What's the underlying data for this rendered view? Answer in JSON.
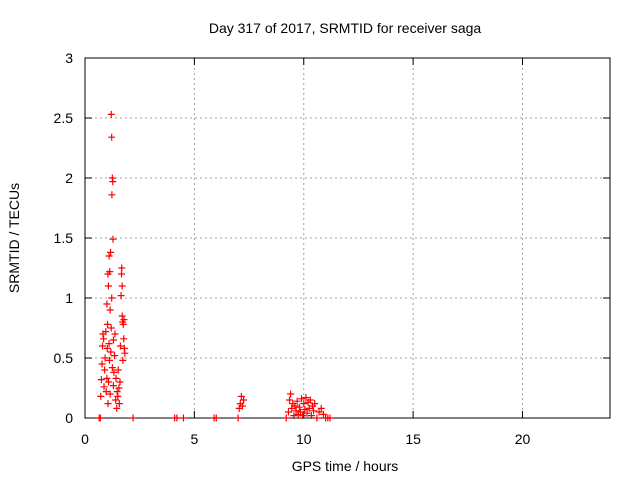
{
  "chart_data": {
    "type": "scatter",
    "title": "Day 317 of 2017, SRMTID for receiver saga",
    "xlabel": "GPS time / hours",
    "ylabel": "SRMTID / TECUs",
    "xlim": [
      0,
      24
    ],
    "ylim": [
      0,
      3
    ],
    "x_ticks": [
      0,
      5,
      10,
      15,
      20
    ],
    "y_ticks": [
      0,
      0.5,
      1,
      1.5,
      2,
      2.5,
      3
    ],
    "x_tick_labels": [
      "0",
      "5",
      "10",
      "15",
      "20"
    ],
    "y_tick_labels": [
      "0",
      "0.5",
      "1",
      "1.5",
      "2",
      "2.5",
      "3"
    ],
    "grid": true,
    "marker": "plus",
    "color": "#ff0000",
    "points": [
      [
        0.65,
        0.0
      ],
      [
        0.7,
        0.0
      ],
      [
        0.72,
        0.18
      ],
      [
        0.75,
        0.32
      ],
      [
        0.78,
        0.45
      ],
      [
        0.8,
        0.6
      ],
      [
        0.82,
        0.7
      ],
      [
        0.85,
        0.66
      ],
      [
        0.87,
        0.26
      ],
      [
        0.9,
        0.4
      ],
      [
        0.92,
        0.5
      ],
      [
        0.95,
        0.72
      ],
      [
        0.97,
        0.22
      ],
      [
        1.0,
        0.33
      ],
      [
        1.0,
        0.95
      ],
      [
        1.02,
        0.58
      ],
      [
        1.03,
        0.78
      ],
      [
        1.05,
        1.2
      ],
      [
        1.05,
        0.12
      ],
      [
        1.07,
        1.1
      ],
      [
        1.08,
        0.3
      ],
      [
        1.1,
        1.35
      ],
      [
        1.1,
        0.62
      ],
      [
        1.12,
        0.48
      ],
      [
        1.13,
        1.22
      ],
      [
        1.15,
        0.9
      ],
      [
        1.15,
        0.2
      ],
      [
        1.17,
        1.38
      ],
      [
        1.18,
        0.55
      ],
      [
        1.2,
        2.53
      ],
      [
        1.2,
        0.75
      ],
      [
        1.22,
        2.34
      ],
      [
        1.22,
        1.0
      ],
      [
        1.23,
        1.86
      ],
      [
        1.25,
        2.0
      ],
      [
        1.25,
        0.42
      ],
      [
        1.27,
        1.97
      ],
      [
        1.28,
        1.49
      ],
      [
        1.3,
        0.65
      ],
      [
        1.3,
        0.27
      ],
      [
        1.32,
        0.38
      ],
      [
        1.35,
        0.52
      ],
      [
        1.37,
        0.7
      ],
      [
        1.4,
        0.15
      ],
      [
        1.42,
        0.33
      ],
      [
        1.45,
        0.08
      ],
      [
        1.47,
        0.22
      ],
      [
        1.5,
        0.18
      ],
      [
        1.52,
        0.4
      ],
      [
        1.55,
        0.25
      ],
      [
        1.57,
        0.12
      ],
      [
        1.6,
        0.3
      ],
      [
        1.62,
        0.6
      ],
      [
        1.65,
        1.02
      ],
      [
        1.67,
        1.2
      ],
      [
        1.68,
        1.25
      ],
      [
        1.7,
        0.85
      ],
      [
        1.7,
        1.1
      ],
      [
        1.72,
        0.8
      ],
      [
        1.73,
        0.48
      ],
      [
        1.75,
        0.78
      ],
      [
        1.77,
        0.66
      ],
      [
        1.78,
        0.82
      ],
      [
        1.8,
        0.58
      ],
      [
        1.82,
        0.54
      ],
      [
        2.2,
        0.0
      ],
      [
        4.1,
        0.0
      ],
      [
        4.2,
        0.0
      ],
      [
        4.5,
        0.0
      ],
      [
        5.9,
        0.0
      ],
      [
        6.0,
        0.0
      ],
      [
        7.0,
        0.0
      ],
      [
        7.05,
        0.08
      ],
      [
        7.1,
        0.12
      ],
      [
        7.15,
        0.18
      ],
      [
        7.2,
        0.1
      ],
      [
        7.25,
        0.15
      ],
      [
        9.2,
        0.0
      ],
      [
        9.3,
        0.05
      ],
      [
        9.35,
        0.15
      ],
      [
        9.4,
        0.2
      ],
      [
        9.45,
        0.08
      ],
      [
        9.5,
        0.12
      ],
      [
        9.55,
        0.02
      ],
      [
        9.6,
        0.1
      ],
      [
        9.65,
        0.06
      ],
      [
        9.7,
        0.14
      ],
      [
        9.75,
        0.03
      ],
      [
        9.8,
        0.09
      ],
      [
        9.85,
        0.05
      ],
      [
        9.9,
        0.16
      ],
      [
        9.95,
        0.02
      ],
      [
        10.0,
        0.12
      ],
      [
        10.05,
        0.07
      ],
      [
        10.1,
        0.17
      ],
      [
        10.15,
        0.04
      ],
      [
        10.2,
        0.13
      ],
      [
        10.25,
        0.08
      ],
      [
        10.3,
        0.15
      ],
      [
        10.35,
        0.02
      ],
      [
        10.4,
        0.1
      ],
      [
        10.45,
        0.06
      ],
      [
        10.5,
        0.12
      ],
      [
        10.6,
        0.0
      ],
      [
        10.7,
        0.05
      ],
      [
        10.8,
        0.08
      ],
      [
        10.9,
        0.03
      ],
      [
        11.0,
        0.0
      ],
      [
        11.1,
        0.0
      ],
      [
        11.2,
        0.0
      ]
    ]
  }
}
